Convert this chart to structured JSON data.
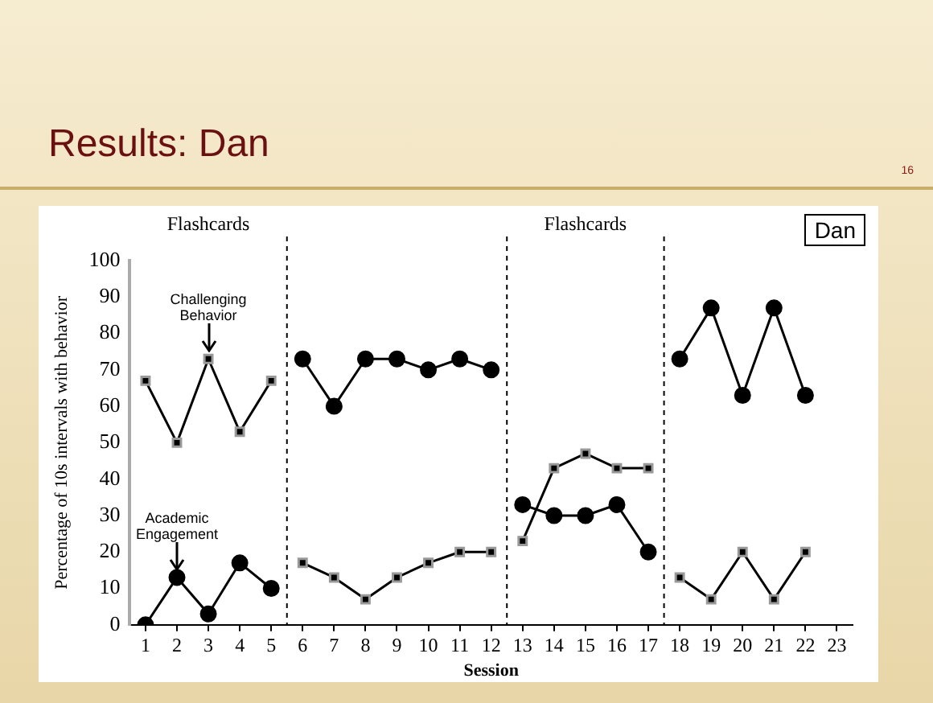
{
  "chart_data": {
    "type": "line",
    "title": "Results: Dan",
    "xlabel": "Session",
    "ylabel": "Percentage of 10s intervals with behavior",
    "xlim": [
      0.5,
      23.5
    ],
    "xticks": [
      1,
      2,
      3,
      4,
      5,
      6,
      7,
      8,
      9,
      10,
      11,
      12,
      13,
      14,
      15,
      16,
      17,
      18,
      19,
      20,
      21,
      22,
      23
    ],
    "ylim": [
      0,
      100
    ],
    "yticks": [
      0,
      10,
      20,
      30,
      40,
      50,
      60,
      70,
      80,
      90,
      100
    ],
    "grid": false,
    "series": [
      {
        "color": "#000000",
        "marker": "square",
        "x": [
          1,
          2,
          3,
          4,
          5
        ],
        "values": [
          67,
          50,
          73,
          53,
          67
        ]
      },
      {
        "color": "#000000",
        "marker": "circle",
        "x": [
          1,
          2,
          3,
          4,
          5
        ],
        "values": [
          0,
          13,
          3,
          17,
          10
        ]
      },
      {
        "color": "#000000",
        "marker": "circle",
        "x": [
          6,
          7,
          8,
          9,
          10,
          11,
          12
        ],
        "values": [
          73,
          60,
          73,
          73,
          70,
          73,
          70
        ]
      },
      {
        "color": "#000000",
        "marker": "square",
        "x": [
          6,
          7,
          8,
          9,
          10,
          11,
          12
        ],
        "values": [
          17,
          13,
          7,
          13,
          17,
          20,
          20
        ]
      },
      {
        "color": "#000000",
        "marker": "square",
        "x": [
          13,
          14,
          15,
          16,
          17
        ],
        "values": [
          23,
          43,
          47,
          43,
          43
        ]
      },
      {
        "color": "#000000",
        "marker": "circle",
        "x": [
          13,
          14,
          15,
          16,
          17
        ],
        "values": [
          33,
          30,
          30,
          33,
          20
        ]
      },
      {
        "color": "#000000",
        "marker": "circle",
        "x": [
          18,
          19,
          20,
          21,
          22
        ],
        "values": [
          73,
          87,
          63,
          87,
          63
        ]
      },
      {
        "color": "#000000",
        "marker": "square",
        "x": [
          18,
          19,
          20,
          21,
          22
        ],
        "values": [
          13,
          7,
          20,
          7,
          20
        ]
      }
    ],
    "ref_lines": [
      {
        "axis": "x",
        "value": 5.5,
        "line_style": "dashed"
      },
      {
        "axis": "x",
        "value": 12.5,
        "line_style": "dashed"
      },
      {
        "axis": "x",
        "value": 17.5,
        "line_style": "dashed"
      }
    ],
    "annotations": [
      {
        "text": "Challenging Behavior",
        "x": 3,
        "y": 73
      },
      {
        "text": "Academic Engagement",
        "x": 2,
        "y": 13
      },
      "Dan",
      "16",
      "Flashcards",
      "Flashcards"
    ]
  }
}
